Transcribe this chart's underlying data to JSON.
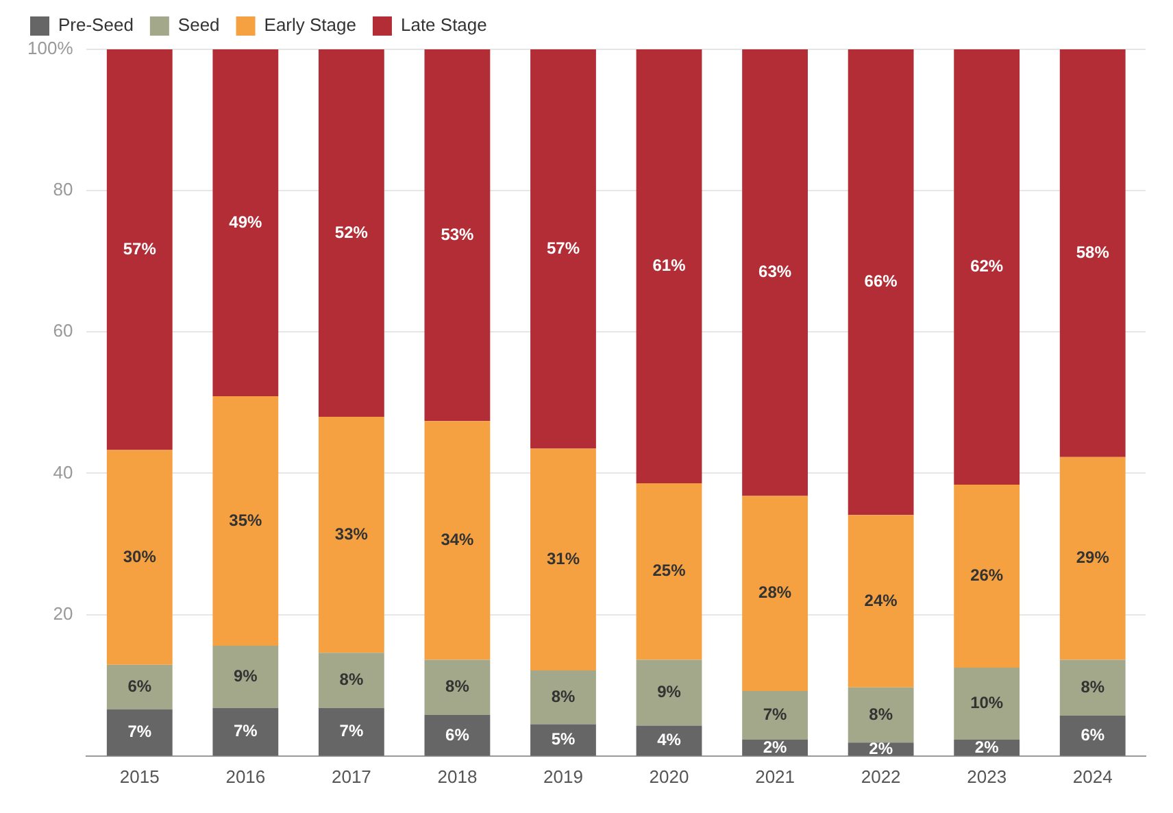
{
  "chart_data": {
    "type": "bar",
    "stacked": true,
    "categories": [
      "2015",
      "2016",
      "2017",
      "2018",
      "2019",
      "2020",
      "2021",
      "2022",
      "2023",
      "2024"
    ],
    "series": [
      {
        "name": "Pre-Seed",
        "color": "#666666",
        "values": [
          6.6,
          6.8,
          6.8,
          5.8,
          4.5,
          4.3,
          2.3,
          1.9,
          2.3,
          5.7
        ],
        "value_labels": [
          "7%",
          "7%",
          "7%",
          "6%",
          "5%",
          "4%",
          "2%",
          "2%",
          "2%",
          "6%"
        ]
      },
      {
        "name": "Seed",
        "color": "#a3a88a",
        "values": [
          6.3,
          8.8,
          7.8,
          7.8,
          7.6,
          9.3,
          6.9,
          7.8,
          10.2,
          7.9
        ],
        "value_labels": [
          "6%",
          "9%",
          "8%",
          "8%",
          "8%",
          "9%",
          "7%",
          "8%",
          "10%",
          "8%"
        ]
      },
      {
        "name": "Early Stage",
        "color": "#f5a142",
        "values": [
          30.4,
          35.3,
          33.4,
          33.8,
          31.4,
          25.0,
          27.6,
          24.4,
          25.9,
          28.7
        ],
        "value_labels": [
          "30%",
          "35%",
          "33%",
          "34%",
          "31%",
          "25%",
          "28%",
          "24%",
          "26%",
          "29%"
        ]
      },
      {
        "name": "Late Stage",
        "color": "#b22d35",
        "values": [
          56.7,
          49.1,
          52.0,
          52.6,
          56.5,
          61.4,
          63.2,
          65.9,
          61.6,
          57.7
        ],
        "value_labels": [
          "57%",
          "49%",
          "52%",
          "53%",
          "57%",
          "61%",
          "63%",
          "66%",
          "62%",
          "58%"
        ]
      }
    ],
    "ylim": [
      0,
      100
    ],
    "yticks": [
      20,
      40,
      60,
      80,
      {
        "value": 100,
        "label": "100%"
      }
    ],
    "grid": "y",
    "legend": "top left"
  }
}
